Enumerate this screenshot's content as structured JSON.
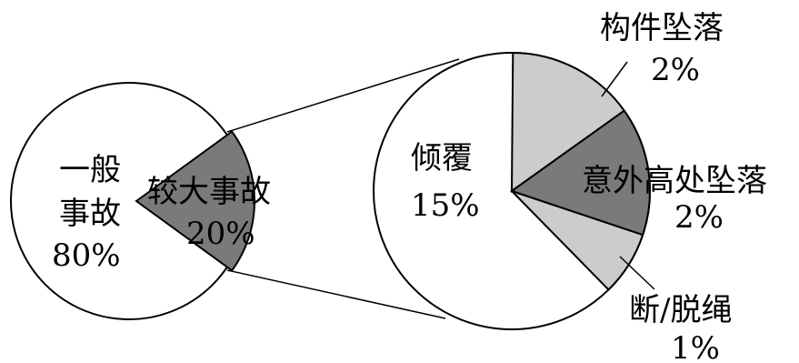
{
  "chart_data": [
    {
      "type": "pie",
      "slices": [
        {
          "name_lines": [
            "一般",
            "事故"
          ],
          "value": 80,
          "value_label": "80%",
          "color": "#ffffff"
        },
        {
          "name_lines": [
            "较大事故"
          ],
          "value": 20,
          "value_label": "20%",
          "color": "#7a7a7a"
        }
      ],
      "exploded_slice": "较大事故"
    },
    {
      "type": "pie",
      "slices": [
        {
          "name": "倾覆",
          "value": 15,
          "value_label": "15%",
          "color": "#ffffff"
        },
        {
          "name": "构件坠落",
          "value": 2,
          "value_label": "2%",
          "color": "#cccccc"
        },
        {
          "name": "意外高处坠落",
          "value": 2,
          "value_label": "2%",
          "color": "#7a7a7a"
        },
        {
          "name": "断/脱绳",
          "value": 1,
          "value_label": "1%",
          "color": "#cccccc"
        }
      ]
    }
  ]
}
